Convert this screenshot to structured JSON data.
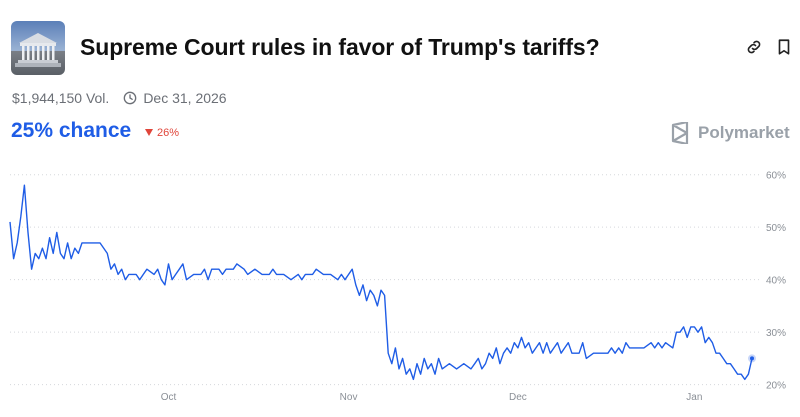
{
  "market": {
    "title": "Supreme Court rules in favor of Trump's tariffs?",
    "volume": "$1,944,150 Vol.",
    "end_date": "Dec 31, 2026",
    "chance": "25% chance",
    "change": "26%",
    "change_direction": "down",
    "brand": "Polymarket"
  },
  "icons": {
    "thumbnail": "supreme-court-building-image",
    "link": "link-icon",
    "bookmark": "bookmark-icon",
    "clock": "clock-icon",
    "change": "triangle-down-icon",
    "brand": "polymarket-logo-icon"
  },
  "colors": {
    "line": "#1f5de6",
    "chance": "#1f5de6",
    "down": "#e0453a",
    "grid": "#d5d8dc",
    "axis_text": "#8a8f96"
  },
  "chart_data": {
    "type": "line",
    "series": [
      {
        "name": "",
        "values": [
          [
            0,
            51
          ],
          [
            1,
            44
          ],
          [
            2,
            47
          ],
          [
            3,
            52
          ],
          [
            4,
            58
          ],
          [
            5,
            49
          ],
          [
            6,
            42
          ],
          [
            7,
            45
          ],
          [
            8,
            44
          ],
          [
            9,
            46
          ],
          [
            10,
            44
          ],
          [
            11,
            48
          ],
          [
            12,
            45
          ],
          [
            13,
            49
          ],
          [
            14,
            45
          ],
          [
            15,
            44
          ],
          [
            16,
            47
          ],
          [
            17,
            44
          ],
          [
            18,
            46
          ],
          [
            19,
            45
          ],
          [
            20,
            47
          ],
          [
            22,
            47
          ],
          [
            25,
            47
          ],
          [
            27,
            45
          ],
          [
            28,
            42
          ],
          [
            29,
            43
          ],
          [
            30,
            41
          ],
          [
            31,
            42
          ],
          [
            32,
            40
          ],
          [
            33,
            41
          ],
          [
            35,
            41
          ],
          [
            36,
            40
          ],
          [
            37,
            41
          ],
          [
            38,
            42
          ],
          [
            40,
            41
          ],
          [
            41,
            42
          ],
          [
            42,
            40
          ],
          [
            43,
            39
          ],
          [
            44,
            43
          ],
          [
            45,
            40
          ],
          [
            46,
            41
          ],
          [
            47,
            42
          ],
          [
            48,
            43
          ],
          [
            49,
            40
          ],
          [
            51,
            41
          ],
          [
            53,
            41
          ],
          [
            54,
            42
          ],
          [
            55,
            40
          ],
          [
            56,
            42
          ],
          [
            58,
            42
          ],
          [
            59,
            41
          ],
          [
            60,
            42
          ],
          [
            62,
            42
          ],
          [
            63,
            43
          ],
          [
            65,
            42
          ],
          [
            66,
            41
          ],
          [
            68,
            42
          ],
          [
            70,
            41
          ],
          [
            72,
            41
          ],
          [
            73,
            42
          ],
          [
            74,
            41
          ],
          [
            76,
            41
          ],
          [
            78,
            40
          ],
          [
            80,
            41
          ],
          [
            81,
            40
          ],
          [
            82,
            41
          ],
          [
            84,
            41
          ],
          [
            85,
            42
          ],
          [
            87,
            41
          ],
          [
            89,
            41
          ],
          [
            91,
            40
          ],
          [
            92,
            41
          ],
          [
            93,
            40
          ],
          [
            94,
            41
          ],
          [
            95,
            42
          ],
          [
            96,
            39
          ],
          [
            97,
            37
          ],
          [
            98,
            39
          ],
          [
            99,
            36
          ],
          [
            100,
            38
          ],
          [
            101,
            37
          ],
          [
            102,
            35
          ],
          [
            103,
            38
          ],
          [
            104,
            37
          ],
          [
            105,
            26
          ],
          [
            106,
            24
          ],
          [
            107,
            27
          ],
          [
            108,
            23
          ],
          [
            109,
            25
          ],
          [
            110,
            22
          ],
          [
            111,
            23
          ],
          [
            112,
            21
          ],
          [
            113,
            24
          ],
          [
            114,
            22
          ],
          [
            115,
            25
          ],
          [
            116,
            23
          ],
          [
            117,
            24
          ],
          [
            118,
            22
          ],
          [
            119,
            25
          ],
          [
            120,
            23
          ],
          [
            122,
            24
          ],
          [
            124,
            23
          ],
          [
            126,
            24
          ],
          [
            128,
            23
          ],
          [
            129,
            24
          ],
          [
            130,
            25
          ],
          [
            131,
            23
          ],
          [
            132,
            24
          ],
          [
            133,
            26
          ],
          [
            134,
            25
          ],
          [
            135,
            27
          ],
          [
            136,
            24
          ],
          [
            137,
            26
          ],
          [
            138,
            27
          ],
          [
            139,
            26
          ],
          [
            140,
            28
          ],
          [
            141,
            27
          ],
          [
            142,
            29
          ],
          [
            143,
            27
          ],
          [
            144,
            28
          ],
          [
            145,
            26
          ],
          [
            146,
            27
          ],
          [
            147,
            28
          ],
          [
            148,
            26
          ],
          [
            149,
            28
          ],
          [
            150,
            26
          ],
          [
            151,
            27
          ],
          [
            152,
            28
          ],
          [
            153,
            26
          ],
          [
            154,
            27
          ],
          [
            155,
            28
          ],
          [
            156,
            26
          ],
          [
            158,
            26
          ],
          [
            159,
            28
          ],
          [
            160,
            25
          ],
          [
            162,
            26
          ],
          [
            164,
            26
          ],
          [
            166,
            26
          ],
          [
            167,
            27
          ],
          [
            168,
            26
          ],
          [
            169,
            27
          ],
          [
            170,
            26
          ],
          [
            171,
            28
          ],
          [
            172,
            27
          ],
          [
            174,
            27
          ],
          [
            176,
            27
          ],
          [
            178,
            28
          ],
          [
            179,
            27
          ],
          [
            180,
            28
          ],
          [
            181,
            27
          ],
          [
            182,
            28
          ],
          [
            184,
            27
          ],
          [
            185,
            30
          ],
          [
            186,
            30
          ],
          [
            187,
            31
          ],
          [
            188,
            29
          ],
          [
            189,
            31
          ],
          [
            190,
            31
          ],
          [
            191,
            30
          ],
          [
            192,
            31
          ],
          [
            193,
            28
          ],
          [
            194,
            29
          ],
          [
            195,
            28
          ],
          [
            196,
            26
          ],
          [
            197,
            26
          ],
          [
            198,
            25
          ],
          [
            199,
            24
          ],
          [
            200,
            24
          ],
          [
            201,
            23
          ],
          [
            202,
            22
          ],
          [
            203,
            22
          ],
          [
            204,
            21
          ],
          [
            205,
            22
          ],
          [
            206,
            25
          ]
        ]
      }
    ],
    "xlim": [
      0,
      206
    ],
    "ylim": [
      18.6,
      62.8
    ],
    "yticks": [
      20,
      30,
      40,
      50,
      60
    ],
    "ytick_labels": [
      "20%",
      "30%",
      "40%",
      "50%",
      "60%"
    ],
    "xticks": [
      44,
      94,
      141,
      190
    ],
    "xtick_labels": [
      "Oct",
      "Nov",
      "Dec",
      "Jan"
    ],
    "grid": "horizontal-dotted",
    "last_value": 25
  }
}
